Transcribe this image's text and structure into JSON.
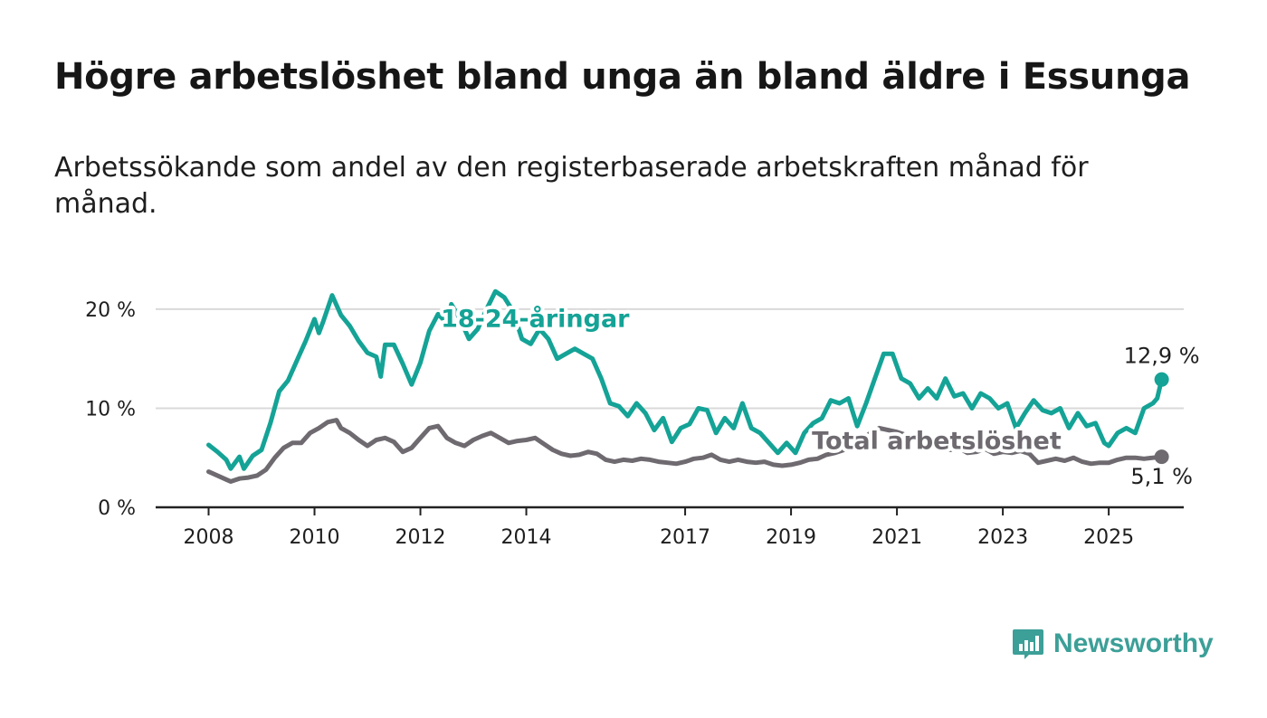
{
  "title": "Högre arbetslöshet bland unga än bland äldre i Essunga",
  "subtitle": "Arbetssökande som andel av den registerbaserade arbetskraften månad för månad.",
  "brand": "Newsworthy",
  "colors": {
    "youth": "#14a396",
    "total": "#6e6a70",
    "grid": "#d9d9d9",
    "axis": "#222222",
    "text": "#1e1e1e",
    "brand": "#3c9f98"
  },
  "chart_data": {
    "type": "line",
    "y_unit": "%",
    "ylim": [
      0,
      22
    ],
    "y_ticks": [
      {
        "value": 0,
        "label": "0 %"
      },
      {
        "value": 10,
        "label": "10 %"
      },
      {
        "value": 20,
        "label": "20 %"
      }
    ],
    "x_ticks": [
      "2008",
      "2010",
      "2012",
      "2014",
      "2017",
      "2019",
      "2021",
      "2023",
      "2025"
    ],
    "xlim": [
      "2007-01",
      "2026-06"
    ],
    "grid": true,
    "series": [
      {
        "name": "18-24-åringar",
        "color": "#14a396",
        "end_label": "12,9 %",
        "points": [
          [
            "2008-01",
            6.3
          ],
          [
            "2008-03",
            5.6
          ],
          [
            "2008-05",
            4.8
          ],
          [
            "2008-06",
            3.9
          ],
          [
            "2008-08",
            5.1
          ],
          [
            "2008-09",
            3.9
          ],
          [
            "2008-11",
            5.2
          ],
          [
            "2009-01",
            5.8
          ],
          [
            "2009-03",
            8.5
          ],
          [
            "2009-05",
            11.7
          ],
          [
            "2009-07",
            12.8
          ],
          [
            "2009-09",
            14.8
          ],
          [
            "2009-11",
            16.8
          ],
          [
            "2010-01",
            19.0
          ],
          [
            "2010-02",
            17.6
          ],
          [
            "2010-03",
            18.8
          ],
          [
            "2010-05",
            21.4
          ],
          [
            "2010-07",
            19.4
          ],
          [
            "2010-09",
            18.3
          ],
          [
            "2010-11",
            16.8
          ],
          [
            "2011-01",
            15.6
          ],
          [
            "2011-03",
            15.2
          ],
          [
            "2011-04",
            13.2
          ],
          [
            "2011-05",
            16.4
          ],
          [
            "2011-07",
            16.4
          ],
          [
            "2011-09",
            14.5
          ],
          [
            "2011-11",
            12.4
          ],
          [
            "2012-01",
            14.6
          ],
          [
            "2012-03",
            17.8
          ],
          [
            "2012-05",
            19.5
          ],
          [
            "2012-07",
            18.6
          ],
          [
            "2012-08",
            20.5
          ],
          [
            "2012-10",
            19.0
          ],
          [
            "2012-12",
            17.0
          ],
          [
            "2013-02",
            18.0
          ],
          [
            "2013-04",
            20.0
          ],
          [
            "2013-06",
            21.8
          ],
          [
            "2013-08",
            21.2
          ],
          [
            "2013-10",
            19.8
          ],
          [
            "2013-12",
            17.0
          ],
          [
            "2014-02",
            16.5
          ],
          [
            "2014-04",
            18.0
          ],
          [
            "2014-06",
            17.0
          ],
          [
            "2014-08",
            15.0
          ],
          [
            "2014-10",
            15.5
          ],
          [
            "2014-12",
            16.0
          ],
          [
            "2015-02",
            15.5
          ],
          [
            "2015-04",
            15.0
          ],
          [
            "2015-06",
            13.0
          ],
          [
            "2015-08",
            10.5
          ],
          [
            "2015-10",
            10.2
          ],
          [
            "2015-12",
            9.2
          ],
          [
            "2016-02",
            10.5
          ],
          [
            "2016-04",
            9.5
          ],
          [
            "2016-06",
            7.8
          ],
          [
            "2016-08",
            9.0
          ],
          [
            "2016-10",
            6.6
          ],
          [
            "2016-12",
            8.0
          ],
          [
            "2017-02",
            8.4
          ],
          [
            "2017-04",
            10.0
          ],
          [
            "2017-06",
            9.8
          ],
          [
            "2017-08",
            7.5
          ],
          [
            "2017-10",
            9.0
          ],
          [
            "2017-12",
            8.0
          ],
          [
            "2018-02",
            10.5
          ],
          [
            "2018-04",
            8.0
          ],
          [
            "2018-06",
            7.5
          ],
          [
            "2018-08",
            6.5
          ],
          [
            "2018-10",
            5.5
          ],
          [
            "2018-12",
            6.5
          ],
          [
            "2019-02",
            5.5
          ],
          [
            "2019-04",
            7.5
          ],
          [
            "2019-06",
            8.5
          ],
          [
            "2019-08",
            9.0
          ],
          [
            "2019-10",
            10.8
          ],
          [
            "2019-12",
            10.5
          ],
          [
            "2020-02",
            11.0
          ],
          [
            "2020-04",
            8.2
          ],
          [
            "2020-06",
            10.5
          ],
          [
            "2020-08",
            13.0
          ],
          [
            "2020-10",
            15.5
          ],
          [
            "2020-12",
            15.5
          ],
          [
            "2021-02",
            13.0
          ],
          [
            "2021-04",
            12.5
          ],
          [
            "2021-06",
            11.0
          ],
          [
            "2021-08",
            12.0
          ],
          [
            "2021-10",
            11.0
          ],
          [
            "2021-12",
            13.0
          ],
          [
            "2022-02",
            11.2
          ],
          [
            "2022-04",
            11.5
          ],
          [
            "2022-06",
            10.0
          ],
          [
            "2022-08",
            11.5
          ],
          [
            "2022-10",
            11.0
          ],
          [
            "2022-12",
            10.0
          ],
          [
            "2023-02",
            10.5
          ],
          [
            "2023-04",
            8.0
          ],
          [
            "2023-06",
            9.5
          ],
          [
            "2023-08",
            10.8
          ],
          [
            "2023-10",
            9.8
          ],
          [
            "2023-12",
            9.5
          ],
          [
            "2024-02",
            10.0
          ],
          [
            "2024-04",
            8.0
          ],
          [
            "2024-06",
            9.5
          ],
          [
            "2024-08",
            8.2
          ],
          [
            "2024-10",
            8.5
          ],
          [
            "2024-12",
            6.5
          ],
          [
            "2025-01",
            6.2
          ],
          [
            "2025-03",
            7.5
          ],
          [
            "2025-05",
            8.0
          ],
          [
            "2025-07",
            7.5
          ],
          [
            "2025-09",
            10.0
          ],
          [
            "2025-11",
            10.5
          ],
          [
            "2025-12",
            11.0
          ],
          [
            "2026-01",
            12.9
          ]
        ]
      },
      {
        "name": "Total arbetslöshet",
        "color": "#6e6a70",
        "end_label": "5,1 %",
        "points": [
          [
            "2008-01",
            3.6
          ],
          [
            "2008-03",
            3.2
          ],
          [
            "2008-05",
            2.8
          ],
          [
            "2008-06",
            2.6
          ],
          [
            "2008-08",
            2.9
          ],
          [
            "2008-10",
            3.0
          ],
          [
            "2008-12",
            3.2
          ],
          [
            "2009-02",
            3.8
          ],
          [
            "2009-04",
            5.0
          ],
          [
            "2009-06",
            6.0
          ],
          [
            "2009-08",
            6.5
          ],
          [
            "2009-10",
            6.5
          ],
          [
            "2009-12",
            7.5
          ],
          [
            "2010-02",
            8.0
          ],
          [
            "2010-04",
            8.6
          ],
          [
            "2010-06",
            8.8
          ],
          [
            "2010-07",
            8.0
          ],
          [
            "2010-09",
            7.5
          ],
          [
            "2010-11",
            6.8
          ],
          [
            "2011-01",
            6.2
          ],
          [
            "2011-03",
            6.8
          ],
          [
            "2011-05",
            7.0
          ],
          [
            "2011-07",
            6.6
          ],
          [
            "2011-09",
            5.6
          ],
          [
            "2011-11",
            6.0
          ],
          [
            "2012-01",
            7.0
          ],
          [
            "2012-03",
            8.0
          ],
          [
            "2012-05",
            8.2
          ],
          [
            "2012-07",
            7.0
          ],
          [
            "2012-09",
            6.5
          ],
          [
            "2012-11",
            6.2
          ],
          [
            "2013-01",
            6.8
          ],
          [
            "2013-03",
            7.2
          ],
          [
            "2013-05",
            7.5
          ],
          [
            "2013-07",
            7.0
          ],
          [
            "2013-09",
            6.5
          ],
          [
            "2013-11",
            6.7
          ],
          [
            "2014-01",
            6.8
          ],
          [
            "2014-03",
            7.0
          ],
          [
            "2014-05",
            6.4
          ],
          [
            "2014-07",
            5.8
          ],
          [
            "2014-09",
            5.4
          ],
          [
            "2014-11",
            5.2
          ],
          [
            "2015-01",
            5.3
          ],
          [
            "2015-03",
            5.6
          ],
          [
            "2015-05",
            5.4
          ],
          [
            "2015-07",
            4.8
          ],
          [
            "2015-09",
            4.6
          ],
          [
            "2015-11",
            4.8
          ],
          [
            "2016-01",
            4.7
          ],
          [
            "2016-03",
            4.9
          ],
          [
            "2016-05",
            4.8
          ],
          [
            "2016-07",
            4.6
          ],
          [
            "2016-09",
            4.5
          ],
          [
            "2016-11",
            4.4
          ],
          [
            "2017-01",
            4.6
          ],
          [
            "2017-03",
            4.9
          ],
          [
            "2017-05",
            5.0
          ],
          [
            "2017-07",
            5.3
          ],
          [
            "2017-09",
            4.8
          ],
          [
            "2017-11",
            4.6
          ],
          [
            "2018-01",
            4.8
          ],
          [
            "2018-03",
            4.6
          ],
          [
            "2018-05",
            4.5
          ],
          [
            "2018-07",
            4.6
          ],
          [
            "2018-09",
            4.3
          ],
          [
            "2018-11",
            4.2
          ],
          [
            "2019-01",
            4.3
          ],
          [
            "2019-03",
            4.5
          ],
          [
            "2019-05",
            4.8
          ],
          [
            "2019-07",
            4.9
          ],
          [
            "2019-09",
            5.3
          ],
          [
            "2019-11",
            5.5
          ],
          [
            "2020-01",
            5.8
          ],
          [
            "2020-03",
            6.2
          ],
          [
            "2020-05",
            6.8
          ],
          [
            "2020-07",
            7.5
          ],
          [
            "2020-09",
            8.0
          ],
          [
            "2020-11",
            7.8
          ],
          [
            "2021-01",
            7.6
          ],
          [
            "2021-03",
            7.3
          ],
          [
            "2021-05",
            7.0
          ],
          [
            "2021-07",
            6.5
          ],
          [
            "2021-09",
            6.3
          ],
          [
            "2021-11",
            6.0
          ],
          [
            "2022-01",
            5.8
          ],
          [
            "2022-03",
            6.0
          ],
          [
            "2022-05",
            5.5
          ],
          [
            "2022-07",
            5.6
          ],
          [
            "2022-09",
            5.9
          ],
          [
            "2022-11",
            5.4
          ],
          [
            "2023-01",
            5.6
          ],
          [
            "2023-03",
            5.5
          ],
          [
            "2023-05",
            5.7
          ],
          [
            "2023-07",
            5.4
          ],
          [
            "2023-09",
            4.5
          ],
          [
            "2023-11",
            4.7
          ],
          [
            "2024-01",
            4.9
          ],
          [
            "2024-03",
            4.7
          ],
          [
            "2024-05",
            5.0
          ],
          [
            "2024-07",
            4.6
          ],
          [
            "2024-09",
            4.4
          ],
          [
            "2024-11",
            4.5
          ],
          [
            "2025-01",
            4.5
          ],
          [
            "2025-03",
            4.8
          ],
          [
            "2025-05",
            5.0
          ],
          [
            "2025-07",
            5.0
          ],
          [
            "2025-09",
            4.9
          ],
          [
            "2025-11",
            5.0
          ],
          [
            "2026-01",
            5.1
          ]
        ]
      }
    ],
    "annotations": [
      {
        "text": "18-24-åringar",
        "series": "18-24-åringar",
        "x": "2014-03",
        "y": 18.2
      },
      {
        "text": "Total arbetslöshet",
        "series": "Total arbetslöshet",
        "x": "2021-10",
        "y": 5.9
      }
    ]
  }
}
